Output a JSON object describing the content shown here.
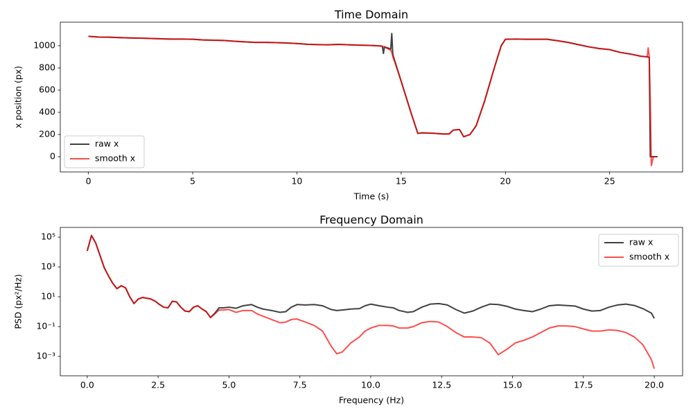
{
  "chart_data": [
    {
      "type": "line",
      "title": "Time Domain",
      "x_label": "Time (s)",
      "y_label": "x position (px)",
      "xlim": [
        -1.35,
        28.5
      ],
      "ylim": [
        -137,
        1212
      ],
      "xticks": [
        0,
        5,
        10,
        15,
        20,
        25
      ],
      "yticks": [
        0,
        200,
        400,
        600,
        800,
        1000
      ],
      "legend": "lower left",
      "x": [
        0,
        0.5,
        1,
        1.5,
        2,
        2.5,
        3,
        3.5,
        4,
        4.5,
        5,
        5.5,
        6,
        6.5,
        7,
        7.5,
        8,
        8.5,
        9,
        9.5,
        10,
        10.5,
        11,
        11.5,
        12,
        12.5,
        13,
        13.5,
        14,
        14.1,
        14.15,
        14.2,
        14.5,
        14.55,
        14.6,
        14.7,
        15,
        15.5,
        15.8,
        16,
        16.5,
        17,
        17.3,
        17.5,
        17.8,
        18,
        18.3,
        18.6,
        19,
        19.5,
        19.8,
        20,
        20.5,
        21,
        22,
        22.5,
        23,
        23.5,
        24,
        24.5,
        25,
        25.5,
        26,
        26.5,
        26.8,
        26.85,
        26.9,
        26.95,
        27.0,
        27.1,
        27.3
      ],
      "series": [
        {
          "name": "raw x",
          "color": "#000000",
          "alpha": 0.75,
          "values": [
            1085,
            1078,
            1077,
            1073,
            1070,
            1068,
            1065,
            1062,
            1060,
            1060,
            1058,
            1052,
            1050,
            1047,
            1040,
            1035,
            1030,
            1030,
            1028,
            1025,
            1020,
            1013,
            1010,
            1008,
            1012,
            1008,
            1005,
            1003,
            998,
            995,
            930,
            990,
            970,
            1110,
            920,
            860,
            680,
            380,
            210,
            215,
            212,
            205,
            205,
            240,
            245,
            180,
            200,
            280,
            500,
            820,
            1000,
            1058,
            1060,
            1058,
            1058,
            1045,
            1030,
            1010,
            990,
            975,
            965,
            940,
            925,
            905,
            900,
            898,
            895,
            0,
            0,
            0,
            0
          ]
        },
        {
          "name": "smooth x",
          "color": "#ff0000",
          "alpha": 0.7,
          "values": [
            1085,
            1078,
            1077,
            1073,
            1070,
            1068,
            1065,
            1062,
            1060,
            1060,
            1058,
            1052,
            1050,
            1047,
            1040,
            1035,
            1030,
            1030,
            1028,
            1025,
            1020,
            1013,
            1010,
            1008,
            1012,
            1008,
            1005,
            1003,
            998,
            995,
            990,
            988,
            960,
            940,
            900,
            850,
            680,
            380,
            210,
            215,
            212,
            205,
            205,
            240,
            245,
            180,
            200,
            280,
            500,
            820,
            1000,
            1058,
            1060,
            1058,
            1058,
            1045,
            1030,
            1010,
            990,
            975,
            965,
            940,
            925,
            905,
            900,
            980,
            900,
            500,
            -80,
            0,
            0
          ]
        }
      ]
    },
    {
      "type": "line",
      "title": "Frequency Domain",
      "x_label": "Frequency (Hz)",
      "y_label": "PSD (px²/Hz)",
      "xlim": [
        -0.95,
        21.0
      ],
      "ylim": [
        5e-05,
        450000
      ],
      "y_scale": "log",
      "xticks": [
        {
          "value": 0,
          "label": "0.0"
        },
        2.5,
        {
          "value": 5,
          "label": "5.0"
        },
        7.5,
        {
          "value": 10,
          "label": "10.0"
        },
        12.5,
        {
          "value": 15,
          "label": "15.0"
        },
        17.5,
        {
          "value": 20,
          "label": "20.0"
        }
      ],
      "yticks": [
        {
          "value": 0.001,
          "label": "10⁻³"
        },
        {
          "value": 0.1,
          "label": "10⁻¹"
        },
        {
          "value": 10,
          "label": "10¹"
        },
        {
          "value": 1000,
          "label": "10³"
        },
        {
          "value": 100000,
          "label": "10⁵"
        }
      ],
      "legend": "upper right",
      "x": [
        0,
        0.15,
        0.3,
        0.45,
        0.6,
        0.75,
        0.9,
        1.05,
        1.2,
        1.35,
        1.5,
        1.65,
        1.8,
        1.95,
        2.1,
        2.25,
        2.4,
        2.55,
        2.7,
        2.85,
        3,
        3.15,
        3.3,
        3.45,
        3.6,
        3.75,
        3.9,
        4.05,
        4.2,
        4.35,
        4.5,
        4.65,
        4.8,
        5,
        5.25,
        5.5,
        5.8,
        6,
        6.2,
        6.5,
        6.8,
        7,
        7.2,
        7.4,
        7.7,
        8,
        8.3,
        8.6,
        8.8,
        9,
        9.3,
        9.6,
        9.8,
        10,
        10.3,
        10.6,
        10.8,
        11,
        11.3,
        11.5,
        11.8,
        12.1,
        12.4,
        12.7,
        13,
        13.3,
        13.6,
        13.9,
        14.2,
        14.5,
        14.8,
        15.1,
        15.4,
        15.7,
        16,
        16.3,
        16.6,
        16.9,
        17.2,
        17.5,
        17.8,
        18.1,
        18.4,
        18.7,
        19,
        19.3,
        19.6,
        19.9,
        20
      ],
      "series": [
        {
          "name": "raw x",
          "color": "#000000",
          "alpha": 0.75,
          "values": [
            12000,
            130000,
            40000,
            6000,
            900,
            250,
            80,
            35,
            55,
            40,
            10,
            3.5,
            7,
            9,
            8,
            7,
            5,
            3,
            2,
            1.8,
            5,
            4.5,
            2,
            1.1,
            1.0,
            2,
            2.5,
            1.5,
            1.0,
            0.4,
            0.8,
            1.8,
            1.8,
            2,
            1.7,
            2.5,
            3,
            2,
            1.5,
            1.2,
            0.9,
            1.0,
            2,
            3,
            2.8,
            3,
            2.5,
            1.4,
            1.2,
            1.3,
            1.5,
            1.6,
            2.5,
            3.2,
            2.5,
            2,
            1.8,
            1.2,
            0.9,
            1.0,
            2,
            3.2,
            3.5,
            2.8,
            1.4,
            0.8,
            1.1,
            2,
            3.2,
            3,
            2.3,
            1.5,
            1.2,
            1.0,
            1.5,
            2.5,
            2.8,
            2.6,
            2.4,
            1.5,
            1.1,
            1.2,
            2,
            2.8,
            3.2,
            2.6,
            1.6,
            0.8,
            0.35
          ]
        },
        {
          "name": "smooth x",
          "color": "#ff0000",
          "alpha": 0.7,
          "values": [
            12000,
            130000,
            40000,
            6000,
            900,
            250,
            80,
            35,
            55,
            40,
            10,
            3.5,
            7,
            9,
            8,
            7,
            5,
            3,
            2,
            1.8,
            5,
            4.5,
            2,
            1.1,
            1.0,
            2,
            2.5,
            1.5,
            1.0,
            0.4,
            0.7,
            1.3,
            1.3,
            1.4,
            0.9,
            1.2,
            1.2,
            0.7,
            0.5,
            0.3,
            0.18,
            0.2,
            0.3,
            0.32,
            0.2,
            0.12,
            0.05,
            0.005,
            0.0015,
            0.002,
            0.008,
            0.02,
            0.05,
            0.08,
            0.12,
            0.12,
            0.11,
            0.08,
            0.08,
            0.1,
            0.18,
            0.22,
            0.2,
            0.1,
            0.04,
            0.02,
            0.02,
            0.018,
            0.008,
            0.0013,
            0.003,
            0.008,
            0.012,
            0.02,
            0.04,
            0.08,
            0.11,
            0.11,
            0.1,
            0.07,
            0.05,
            0.05,
            0.06,
            0.055,
            0.04,
            0.02,
            0.006,
            0.0006,
            0.00015
          ]
        }
      ]
    }
  ]
}
